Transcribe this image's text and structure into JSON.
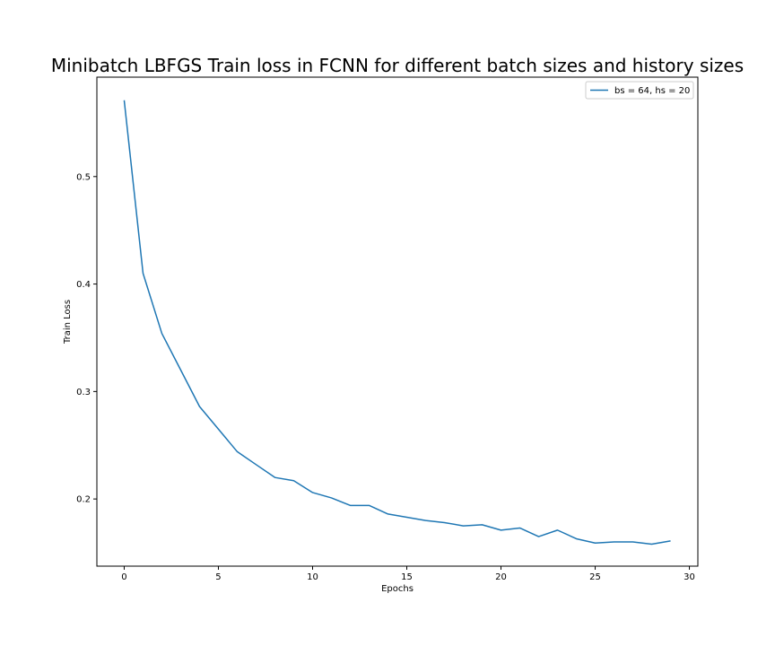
{
  "chart_data": {
    "type": "line",
    "title": "Minibatch LBFGS Train loss in FCNN for different batch sizes and history sizes",
    "xlabel": "Epochs",
    "ylabel": "Train Loss",
    "xlim": [
      -1.45,
      30.45
    ],
    "ylim": [
      0.1375,
      0.5925
    ],
    "xticks": [
      0,
      5,
      10,
      15,
      20,
      25,
      30
    ],
    "xtick_labels": [
      "0",
      "5",
      "10",
      "15",
      "20",
      "25",
      "30"
    ],
    "yticks": [
      0.2,
      0.3,
      0.4,
      0.5
    ],
    "ytick_labels": [
      "0.2",
      "0.3",
      "0.4",
      "0.5"
    ],
    "grid": false,
    "legend_position": "upper right",
    "color": "#1f77b4",
    "series": [
      {
        "name": "bs = 64, hs = 20",
        "x": [
          0,
          1,
          2,
          3,
          4,
          5,
          6,
          7,
          8,
          9,
          10,
          11,
          12,
          13,
          14,
          15,
          16,
          17,
          18,
          19,
          20,
          21,
          22,
          23,
          24,
          25,
          26,
          27,
          28,
          29
        ],
        "y": [
          0.571,
          0.41,
          0.354,
          0.32,
          0.286,
          0.265,
          0.244,
          0.232,
          0.22,
          0.217,
          0.206,
          0.201,
          0.194,
          0.194,
          0.186,
          0.183,
          0.18,
          0.178,
          0.175,
          0.176,
          0.171,
          0.173,
          0.165,
          0.171,
          0.163,
          0.159,
          0.16,
          0.16,
          0.158,
          0.161
        ]
      }
    ]
  }
}
